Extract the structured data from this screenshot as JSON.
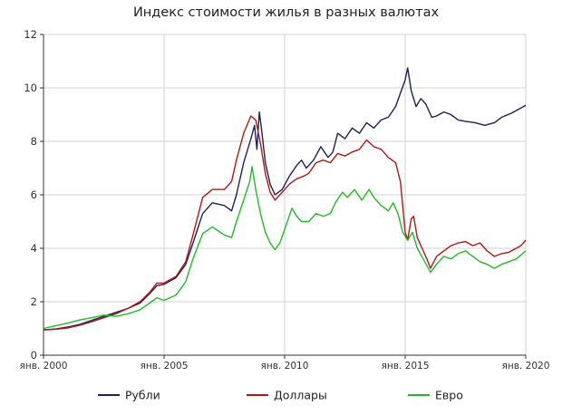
{
  "chart_data": {
    "type": "line",
    "title": "Индекс стоимости жилья в разных валютах",
    "xlabel": "",
    "ylabel": "",
    "xlim": [
      2000,
      2020
    ],
    "ylim": [
      0,
      12
    ],
    "yticks": [
      0,
      2,
      4,
      6,
      8,
      10,
      12
    ],
    "xticks": [
      {
        "x": 2000,
        "label": "янв. 2000"
      },
      {
        "x": 2005,
        "label": "янв. 2005"
      },
      {
        "x": 2010,
        "label": "янв. 2010"
      },
      {
        "x": 2015,
        "label": "янв. 2015"
      },
      {
        "x": 2020,
        "label": "янв. 2020"
      }
    ],
    "grid": true,
    "legend_position": "bottom",
    "series": [
      {
        "name": "Рубли",
        "color": "#1c2157",
        "points": [
          [
            2000.0,
            0.95
          ],
          [
            2000.5,
            0.98
          ],
          [
            2001.0,
            1.05
          ],
          [
            2001.5,
            1.15
          ],
          [
            2002.0,
            1.3
          ],
          [
            2002.5,
            1.45
          ],
          [
            2003.0,
            1.6
          ],
          [
            2003.5,
            1.75
          ],
          [
            2004.0,
            1.95
          ],
          [
            2004.4,
            2.3
          ],
          [
            2004.7,
            2.6
          ],
          [
            2005.0,
            2.65
          ],
          [
            2005.5,
            2.9
          ],
          [
            2005.9,
            3.4
          ],
          [
            2006.2,
            4.2
          ],
          [
            2006.6,
            5.3
          ],
          [
            2007.0,
            5.7
          ],
          [
            2007.5,
            5.6
          ],
          [
            2007.8,
            5.4
          ],
          [
            2008.0,
            6.0
          ],
          [
            2008.3,
            7.2
          ],
          [
            2008.6,
            8.1
          ],
          [
            2008.75,
            8.6
          ],
          [
            2008.85,
            7.7
          ],
          [
            2008.95,
            9.1
          ],
          [
            2009.05,
            8.4
          ],
          [
            2009.2,
            7.2
          ],
          [
            2009.4,
            6.4
          ],
          [
            2009.6,
            6.0
          ],
          [
            2009.9,
            6.2
          ],
          [
            2010.2,
            6.7
          ],
          [
            2010.5,
            7.1
          ],
          [
            2010.7,
            7.3
          ],
          [
            2010.9,
            7.0
          ],
          [
            2011.2,
            7.3
          ],
          [
            2011.5,
            7.8
          ],
          [
            2011.8,
            7.4
          ],
          [
            2012.0,
            7.6
          ],
          [
            2012.2,
            8.3
          ],
          [
            2012.5,
            8.1
          ],
          [
            2012.8,
            8.5
          ],
          [
            2013.1,
            8.3
          ],
          [
            2013.4,
            8.7
          ],
          [
            2013.7,
            8.5
          ],
          [
            2014.0,
            8.8
          ],
          [
            2014.3,
            8.9
          ],
          [
            2014.6,
            9.3
          ],
          [
            2014.8,
            9.8
          ],
          [
            2015.0,
            10.3
          ],
          [
            2015.1,
            10.75
          ],
          [
            2015.25,
            9.9
          ],
          [
            2015.45,
            9.3
          ],
          [
            2015.65,
            9.6
          ],
          [
            2015.85,
            9.4
          ],
          [
            2016.1,
            8.9
          ],
          [
            2016.3,
            8.95
          ],
          [
            2016.6,
            9.1
          ],
          [
            2016.9,
            9.0
          ],
          [
            2017.2,
            8.8
          ],
          [
            2017.5,
            8.75
          ],
          [
            2017.9,
            8.7
          ],
          [
            2018.3,
            8.6
          ],
          [
            2018.7,
            8.7
          ],
          [
            2019.0,
            8.9
          ],
          [
            2019.4,
            9.05
          ],
          [
            2019.8,
            9.25
          ],
          [
            2020.0,
            9.35
          ]
        ]
      },
      {
        "name": "Доллары",
        "color": "#b01818",
        "points": [
          [
            2000.0,
            0.95
          ],
          [
            2000.5,
            0.97
          ],
          [
            2001.0,
            1.02
          ],
          [
            2001.5,
            1.12
          ],
          [
            2002.0,
            1.25
          ],
          [
            2002.5,
            1.4
          ],
          [
            2003.0,
            1.55
          ],
          [
            2003.5,
            1.75
          ],
          [
            2004.0,
            2.0
          ],
          [
            2004.4,
            2.35
          ],
          [
            2004.7,
            2.7
          ],
          [
            2005.0,
            2.7
          ],
          [
            2005.5,
            2.95
          ],
          [
            2005.9,
            3.5
          ],
          [
            2006.2,
            4.5
          ],
          [
            2006.6,
            5.9
          ],
          [
            2007.0,
            6.2
          ],
          [
            2007.5,
            6.2
          ],
          [
            2007.8,
            6.5
          ],
          [
            2008.0,
            7.3
          ],
          [
            2008.3,
            8.3
          ],
          [
            2008.6,
            8.95
          ],
          [
            2008.8,
            8.8
          ],
          [
            2009.0,
            7.9
          ],
          [
            2009.2,
            6.8
          ],
          [
            2009.4,
            6.1
          ],
          [
            2009.6,
            5.8
          ],
          [
            2009.9,
            6.1
          ],
          [
            2010.2,
            6.4
          ],
          [
            2010.5,
            6.6
          ],
          [
            2010.8,
            6.7
          ],
          [
            2011.0,
            6.8
          ],
          [
            2011.3,
            7.2
          ],
          [
            2011.6,
            7.3
          ],
          [
            2011.9,
            7.2
          ],
          [
            2012.2,
            7.55
          ],
          [
            2012.5,
            7.45
          ],
          [
            2012.8,
            7.6
          ],
          [
            2013.1,
            7.7
          ],
          [
            2013.4,
            8.05
          ],
          [
            2013.7,
            7.8
          ],
          [
            2014.0,
            7.7
          ],
          [
            2014.3,
            7.4
          ],
          [
            2014.6,
            7.2
          ],
          [
            2014.8,
            6.5
          ],
          [
            2015.0,
            4.6
          ],
          [
            2015.1,
            4.3
          ],
          [
            2015.25,
            5.1
          ],
          [
            2015.35,
            5.2
          ],
          [
            2015.5,
            4.4
          ],
          [
            2015.7,
            4.0
          ],
          [
            2015.9,
            3.6
          ],
          [
            2016.05,
            3.25
          ],
          [
            2016.3,
            3.7
          ],
          [
            2016.6,
            3.9
          ],
          [
            2016.9,
            4.1
          ],
          [
            2017.2,
            4.2
          ],
          [
            2017.5,
            4.25
          ],
          [
            2017.8,
            4.1
          ],
          [
            2018.1,
            4.2
          ],
          [
            2018.4,
            3.9
          ],
          [
            2018.7,
            3.7
          ],
          [
            2019.0,
            3.8
          ],
          [
            2019.3,
            3.85
          ],
          [
            2019.6,
            4.0
          ],
          [
            2019.8,
            4.1
          ],
          [
            2020.0,
            4.3
          ]
        ]
      },
      {
        "name": "Евро",
        "color": "#23b82a",
        "points": [
          [
            2000.0,
            1.0
          ],
          [
            2000.5,
            1.1
          ],
          [
            2001.0,
            1.2
          ],
          [
            2001.5,
            1.32
          ],
          [
            2002.0,
            1.4
          ],
          [
            2002.5,
            1.5
          ],
          [
            2003.0,
            1.45
          ],
          [
            2003.5,
            1.55
          ],
          [
            2004.0,
            1.7
          ],
          [
            2004.4,
            1.95
          ],
          [
            2004.7,
            2.15
          ],
          [
            2005.0,
            2.05
          ],
          [
            2005.5,
            2.25
          ],
          [
            2005.9,
            2.75
          ],
          [
            2006.2,
            3.6
          ],
          [
            2006.6,
            4.55
          ],
          [
            2007.0,
            4.8
          ],
          [
            2007.5,
            4.5
          ],
          [
            2007.8,
            4.4
          ],
          [
            2008.0,
            5.0
          ],
          [
            2008.3,
            5.8
          ],
          [
            2008.55,
            6.5
          ],
          [
            2008.65,
            7.05
          ],
          [
            2008.8,
            6.2
          ],
          [
            2009.0,
            5.3
          ],
          [
            2009.2,
            4.6
          ],
          [
            2009.4,
            4.2
          ],
          [
            2009.6,
            3.95
          ],
          [
            2009.8,
            4.2
          ],
          [
            2010.0,
            4.7
          ],
          [
            2010.3,
            5.5
          ],
          [
            2010.5,
            5.2
          ],
          [
            2010.7,
            5.0
          ],
          [
            2011.0,
            5.0
          ],
          [
            2011.3,
            5.3
          ],
          [
            2011.6,
            5.2
          ],
          [
            2011.9,
            5.3
          ],
          [
            2012.1,
            5.7
          ],
          [
            2012.4,
            6.1
          ],
          [
            2012.6,
            5.9
          ],
          [
            2012.9,
            6.2
          ],
          [
            2013.2,
            5.8
          ],
          [
            2013.5,
            6.2
          ],
          [
            2013.7,
            5.9
          ],
          [
            2014.0,
            5.6
          ],
          [
            2014.3,
            5.4
          ],
          [
            2014.5,
            5.7
          ],
          [
            2014.7,
            5.3
          ],
          [
            2014.9,
            4.6
          ],
          [
            2015.1,
            4.3
          ],
          [
            2015.3,
            4.6
          ],
          [
            2015.5,
            4.0
          ],
          [
            2015.75,
            3.6
          ],
          [
            2016.05,
            3.1
          ],
          [
            2016.3,
            3.4
          ],
          [
            2016.6,
            3.7
          ],
          [
            2016.9,
            3.6
          ],
          [
            2017.2,
            3.8
          ],
          [
            2017.5,
            3.9
          ],
          [
            2017.8,
            3.7
          ],
          [
            2018.1,
            3.5
          ],
          [
            2018.4,
            3.4
          ],
          [
            2018.7,
            3.25
          ],
          [
            2019.0,
            3.4
          ],
          [
            2019.3,
            3.5
          ],
          [
            2019.6,
            3.6
          ],
          [
            2019.8,
            3.75
          ],
          [
            2020.0,
            3.9
          ]
        ]
      }
    ]
  }
}
